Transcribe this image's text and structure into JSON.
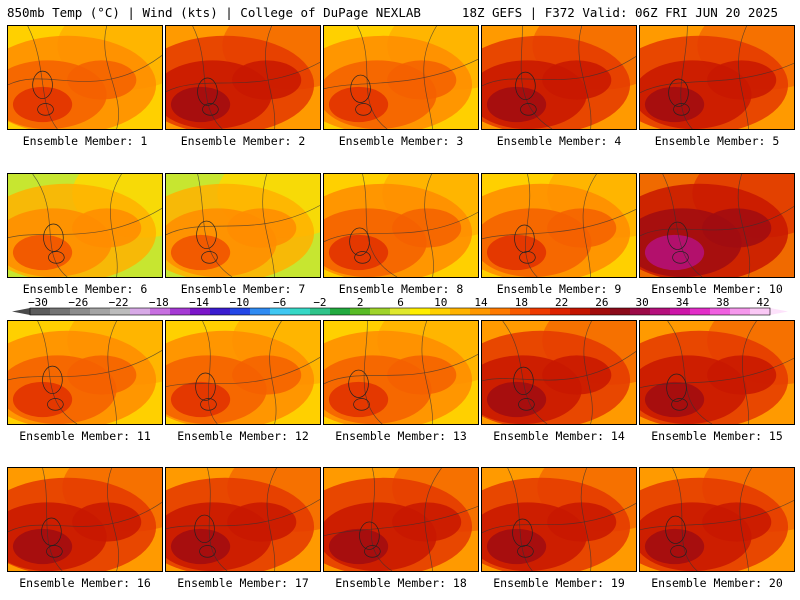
{
  "header": {
    "left_title": "850mb Temp (°C) | Wind (kts) | College of DuPage NEXLAB",
    "right_title": "18Z GEFS | F372 Valid: 06Z FRI JUN 20 2025"
  },
  "members": [
    {
      "label": "Ensemble Member: 1",
      "scheme": "warm"
    },
    {
      "label": "Ensemble Member: 2",
      "scheme": "hot"
    },
    {
      "label": "Ensemble Member: 3",
      "scheme": "warm"
    },
    {
      "label": "Ensemble Member: 4",
      "scheme": "hot"
    },
    {
      "label": "Ensemble Member: 5",
      "scheme": "hot"
    },
    {
      "label": "Ensemble Member: 6",
      "scheme": "cool"
    },
    {
      "label": "Ensemble Member: 7",
      "scheme": "cool"
    },
    {
      "label": "Ensemble Member: 8",
      "scheme": "warm"
    },
    {
      "label": "Ensemble Member: 9",
      "scheme": "warm"
    },
    {
      "label": "Ensemble Member: 10",
      "scheme": "veryhot"
    },
    {
      "label": "Ensemble Member: 11",
      "scheme": "warm"
    },
    {
      "label": "Ensemble Member: 12",
      "scheme": "warm"
    },
    {
      "label": "Ensemble Member: 13",
      "scheme": "warm"
    },
    {
      "label": "Ensemble Member: 14",
      "scheme": "hot"
    },
    {
      "label": "Ensemble Member: 15",
      "scheme": "hot"
    },
    {
      "label": "Ensemble Member: 16",
      "scheme": "hot"
    },
    {
      "label": "Ensemble Member: 17",
      "scheme": "hot"
    },
    {
      "label": "Ensemble Member: 18",
      "scheme": "hot"
    },
    {
      "label": "Ensemble Member: 19",
      "scheme": "hot"
    },
    {
      "label": "Ensemble Member: 20",
      "scheme": "hot"
    }
  ],
  "colorbar": {
    "ticks": [
      "−30",
      "−26",
      "−22",
      "−18",
      "−14",
      "−10",
      "−6",
      "−2",
      "2",
      "6",
      "10",
      "14",
      "18",
      "22",
      "26",
      "30",
      "34",
      "38",
      "42"
    ],
    "colors": [
      "#5c5c5c",
      "#747474",
      "#8c8c8c",
      "#a4a4a4",
      "#bcbcbc",
      "#d7a9e6",
      "#c76fe0",
      "#a53ad4",
      "#7b16c9",
      "#3a1ccf",
      "#2346e6",
      "#2f8bf2",
      "#3fc7f2",
      "#36d8c6",
      "#2fc48a",
      "#22aa3f",
      "#58bb26",
      "#9fd32a",
      "#dfe82d",
      "#ffee00",
      "#ffd000",
      "#ffb300",
      "#ff9800",
      "#ff7a00",
      "#f85a00",
      "#ee3a00",
      "#dd2200",
      "#c41400",
      "#a30c0c",
      "#8b0a1a",
      "#9b0a47",
      "#b5107c",
      "#cd16a8",
      "#e22ec8",
      "#f060e0",
      "#f598ec",
      "#fac8f5"
    ]
  }
}
